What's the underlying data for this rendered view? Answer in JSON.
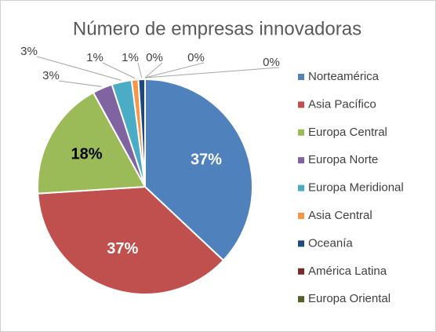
{
  "chart_data": {
    "type": "pie",
    "title": "Número de empresas innovadoras",
    "categories": [
      "Norteamérica",
      "Asia Pacífico",
      "Europa Central",
      "Europa Norte",
      "Europa Meridional",
      "Asia Central",
      "Oceanía",
      "América Latina",
      "Europa Oriental",
      null
    ],
    "values": [
      37,
      37,
      18,
      3,
      3,
      1,
      1,
      0,
      0,
      0
    ],
    "value_labels": [
      "37%",
      "37%",
      "18%",
      "3%",
      "3%",
      "1%",
      "1%",
      "0%",
      "0%",
      "0%"
    ],
    "colors": [
      "#4f81bd",
      "#c0504d",
      "#9bbb59",
      "#8064a2",
      "#4bacc6",
      "#f79646",
      "#1f497d",
      "#772c2a",
      "#4f6228",
      "#3f3151"
    ],
    "legend": "right"
  }
}
